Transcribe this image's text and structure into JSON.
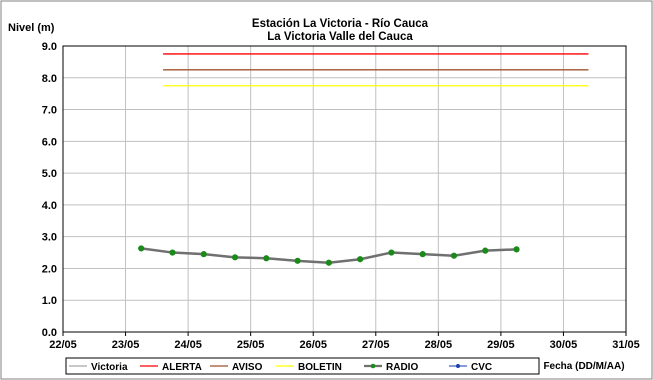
{
  "chart_data": {
    "type": "line",
    "title": "Estación La Victoria - Río Cauca",
    "subtitle": "La Victoria Valle del Cauca",
    "ylabel": "Nivel (m)",
    "xlabel": "Fecha (DD/M/AA)",
    "ylim": [
      0,
      9
    ],
    "yticks": [
      "0.0",
      "1.0",
      "2.0",
      "3.0",
      "4.0",
      "5.0",
      "6.0",
      "7.0",
      "8.0",
      "9.0"
    ],
    "xlim": [
      0,
      9
    ],
    "xticks": [
      "22/05",
      "23/05",
      "24/05",
      "25/05",
      "26/05",
      "27/05",
      "28/05",
      "29/05",
      "30/05",
      "31/05"
    ],
    "grid": true,
    "legend_position": "bottom",
    "series": [
      {
        "name": "Victoria",
        "color": "#a6a6a6",
        "marker": "none",
        "x": [],
        "y": []
      },
      {
        "name": "ALERTA",
        "color": "#ff0000",
        "marker": "none",
        "x": [
          1.6,
          8.4
        ],
        "y": [
          8.75,
          8.75
        ]
      },
      {
        "name": "AVISO",
        "color": "#a0522d",
        "marker": "none",
        "x": [
          1.6,
          8.4
        ],
        "y": [
          8.25,
          8.25
        ]
      },
      {
        "name": "BOLETIN",
        "color": "#ffff00",
        "marker": "none",
        "x": [
          1.6,
          8.4
        ],
        "y": [
          7.75,
          7.75
        ]
      },
      {
        "name": "RADIO",
        "color": "#707070",
        "marker": "circle",
        "marker_color": "#1a8a1a",
        "x": [
          1.25,
          1.75,
          2.25,
          2.75,
          3.25,
          3.75,
          4.25,
          4.75,
          5.25,
          5.75,
          6.25,
          6.75,
          7.25
        ],
        "y": [
          2.63,
          2.5,
          2.45,
          2.35,
          2.32,
          2.24,
          2.18,
          2.29,
          2.5,
          2.45,
          2.4,
          2.56,
          2.6
        ]
      },
      {
        "name": "CVC",
        "color": "#4060c0",
        "marker": "dot",
        "x": [],
        "y": []
      }
    ]
  }
}
